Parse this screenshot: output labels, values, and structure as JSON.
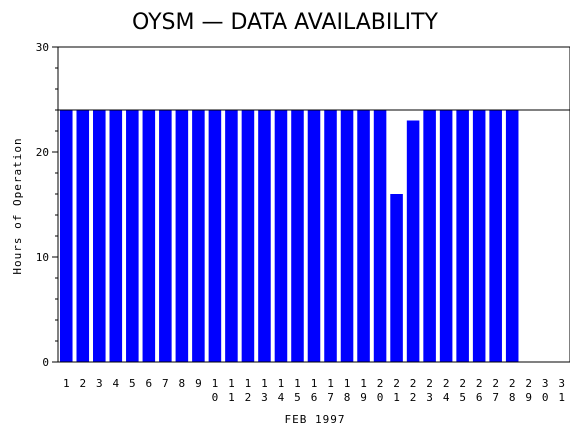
{
  "chart_data": {
    "type": "bar",
    "title": "OYSM — DATA AVAILABILITY",
    "xlabel": "FEB 1997",
    "ylabel": "Hours of Operation",
    "ylim": [
      0,
      30
    ],
    "yticks": [
      0,
      10,
      20,
      30
    ],
    "reference_line": 24,
    "grid": false,
    "categories": [
      "1",
      "2",
      "3",
      "4",
      "5",
      "6",
      "7",
      "8",
      "9",
      "10",
      "11",
      "12",
      "13",
      "14",
      "15",
      "16",
      "17",
      "18",
      "19",
      "20",
      "21",
      "22",
      "23",
      "24",
      "25",
      "26",
      "27",
      "28",
      "29",
      "30",
      "31"
    ],
    "values": [
      24,
      24,
      24,
      24,
      24,
      24,
      24,
      24,
      24,
      24,
      24,
      24,
      24,
      24,
      24,
      24,
      24,
      24,
      24,
      24,
      16,
      23,
      24,
      24,
      24,
      24,
      24,
      24,
      null,
      null,
      null
    ],
    "bar_color": "#0000ff"
  }
}
